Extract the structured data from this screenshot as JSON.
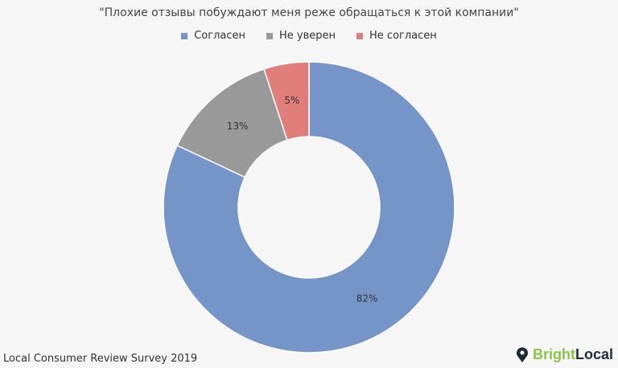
{
  "chart_data": {
    "type": "pie",
    "donut": true,
    "title": "\"Плохие отзывы побуждают меня реже обращаться к этой компании\"",
    "categories": [
      "Согласен",
      "Не уверен",
      "Не согласен"
    ],
    "values": [
      82,
      13,
      5
    ],
    "labels": [
      "82%",
      "13%",
      "5%"
    ],
    "colors": [
      "#7595c9",
      "#999999",
      "#e07e7a"
    ],
    "legend": "top"
  },
  "footer": {
    "source": "Local Consumer Review Survey 2019",
    "logo_a": "Bright",
    "logo_b": "Local"
  }
}
